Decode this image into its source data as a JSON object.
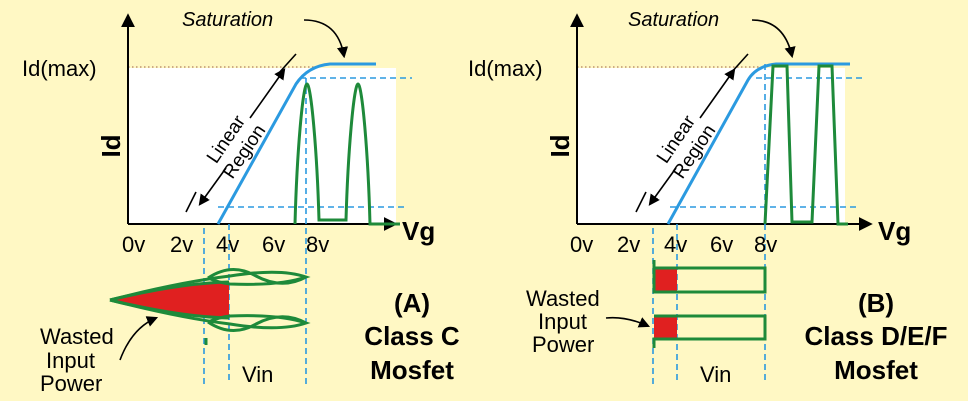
{
  "colors": {
    "background": "#FFF8C4",
    "curve": "#2B9AE0",
    "signal": "#1E8A3A",
    "wasted": "#E02020",
    "dashed": "#2B9AE0"
  },
  "panel_a": {
    "y_axis_label": "Id",
    "x_axis_label": "Vg",
    "id_max_label": "Id(max)",
    "saturation_label": "Saturation",
    "linear_region_line1": "Linear",
    "linear_region_line2": "Region",
    "x_ticks": [
      "0v",
      "2v",
      "4v",
      "6v",
      "8v"
    ],
    "vin_label": "Vin",
    "wasted_line1": "Wasted",
    "wasted_line2": "Input",
    "wasted_line3": "Power",
    "letter": "(A)",
    "class_label": "Class C",
    "device_label": "Mosfet"
  },
  "panel_b": {
    "y_axis_label": "Id",
    "x_axis_label": "Vg",
    "id_max_label": "Id(max)",
    "saturation_label": "Saturation",
    "linear_region_line1": "Linear",
    "linear_region_line2": "Region",
    "x_ticks": [
      "0v",
      "2v",
      "4v",
      "6v",
      "8v"
    ],
    "vin_label": "Vin",
    "wasted_line1": "Wasted",
    "wasted_line2": "Input",
    "wasted_line3": "Power",
    "letter": "(B)",
    "class_label": "Class D/E/F",
    "device_label": "Mosfet"
  }
}
